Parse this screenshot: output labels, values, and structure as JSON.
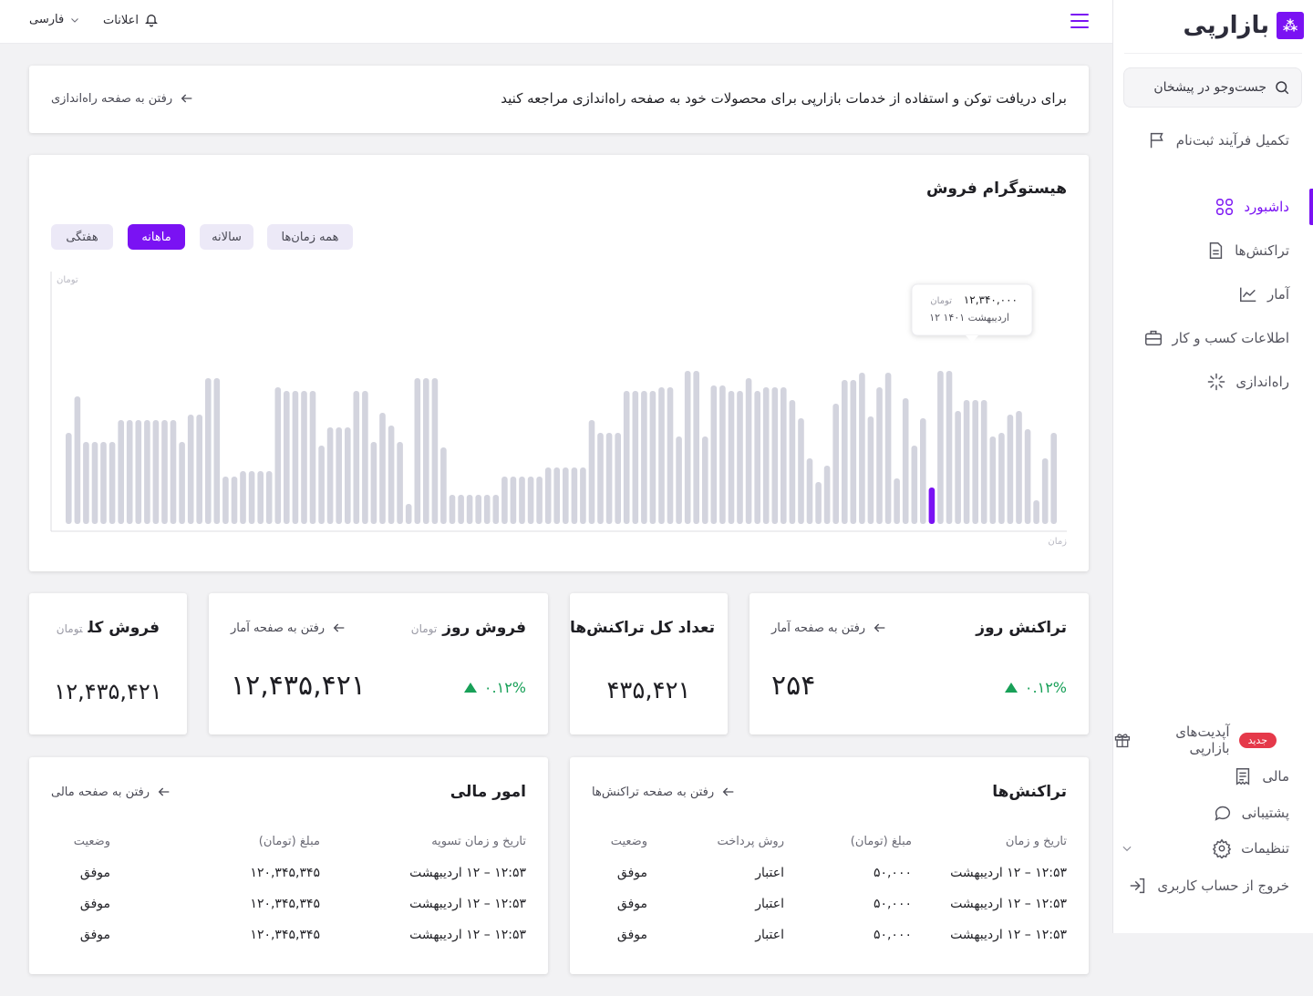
{
  "sidebar": {
    "logo_text": "بازارپی",
    "search_placeholder": "جست‌وجو در پیشخان",
    "complete_signup": "تکمیل فرآیند ثبت‌نام",
    "items": [
      {
        "label": "داشبورد",
        "icon": "dashboard-icon",
        "active": true
      },
      {
        "label": "تراکنش‌ها",
        "icon": "document-icon",
        "active": false
      },
      {
        "label": "آمار",
        "icon": "chart-icon",
        "active": false
      },
      {
        "label": "اطلاعات کسب و کار",
        "icon": "briefcase-icon",
        "active": false
      },
      {
        "label": "راه‌اندازی",
        "icon": "setup-icon",
        "active": false
      }
    ],
    "bottom": [
      {
        "label": "آپدیت‌های بازارپی",
        "icon": "gift-icon",
        "badge": "جدید"
      },
      {
        "label": "مالی",
        "icon": "receipt-icon"
      },
      {
        "label": "پشتیبانی",
        "icon": "chat-icon"
      },
      {
        "label": "تنظیمات",
        "icon": "gear-icon"
      },
      {
        "label": "خروج از حساب کاربری",
        "icon": "logout-icon"
      }
    ]
  },
  "topbar": {
    "notifications": "اعلانات",
    "language": "فارسی"
  },
  "banner": {
    "text": "برای دریافت توکن و استفاده از خدمات بازارپی برای محصولات خود به صفحه راه‌اندازی مراجعه کنید",
    "link": "رفتن به صفحه راه‌اندازی"
  },
  "histogram": {
    "title": "هیستوگرام فروش",
    "chips": [
      {
        "label": "همه زمان‌ها",
        "active": false
      },
      {
        "label": "سالانه",
        "active": false
      },
      {
        "label": "ماهانه",
        "active": true
      },
      {
        "label": "هفتگی",
        "active": false
      }
    ],
    "y_unit": "تومان",
    "x_unit": "زمان",
    "tooltip": {
      "amount": "۱۲,۳۴۰,۰۰۰",
      "unit": "تومان",
      "date": "۱۲ اردیبهشت ۱۴۰۱"
    }
  },
  "chart_data": {
    "type": "bar",
    "title": "هیستوگرام فروش",
    "xlabel": "زمان",
    "ylabel": "تومان",
    "ylim": [
      0,
      100
    ],
    "highlight_index": 99,
    "colors": {
      "bar": "#d3d4de",
      "highlight": "#7a12f3"
    },
    "values": [
      50,
      70,
      45,
      45,
      45,
      45,
      57,
      57,
      57,
      57,
      57,
      57,
      57,
      45,
      60,
      60,
      80,
      80,
      26,
      26,
      29,
      29,
      29,
      29,
      75,
      73,
      73,
      73,
      73,
      43,
      53,
      53,
      53,
      73,
      73,
      45,
      61,
      54,
      45,
      11,
      80,
      80,
      80,
      42,
      16,
      16,
      16,
      16,
      16,
      16,
      26,
      26,
      26,
      26,
      26,
      31,
      31,
      31,
      31,
      31,
      57,
      50,
      50,
      50,
      73,
      73,
      73,
      73,
      75,
      75,
      48,
      84,
      84,
      48,
      76,
      76,
      73,
      73,
      80,
      73,
      75,
      75,
      75,
      68,
      58,
      36,
      23,
      32,
      66,
      79,
      79,
      83,
      59,
      75,
      83,
      25,
      69,
      43,
      58,
      20,
      84,
      84,
      62,
      68,
      68,
      68,
      48,
      50,
      60,
      62,
      52,
      13,
      36,
      50
    ],
    "values_note": "relative heights",
    "grid": false
  },
  "stats": {
    "total_sales": {
      "title": "فروش کل",
      "unit": "تومان",
      "value": "۱۲,۴۳۵,۴۲۱"
    },
    "day_sales": {
      "title": "فروش روز",
      "unit": "تومان",
      "link": "رفتن به صفحه آمار",
      "value": "۱۲,۴۳۵,۴۲۱",
      "delta": "۰.۱۲%"
    },
    "total_tx": {
      "title": "تعداد کل تراکنش‌ها",
      "value": "۴۳۵,۴۲۱"
    },
    "day_tx": {
      "title": "تراکنش روز",
      "link": "رفتن به صفحه آمار",
      "value": "۲۵۴",
      "delta": "۰.۱۲%"
    }
  },
  "finance": {
    "title": "امور مالی",
    "link": "رفتن به صفحه مالی",
    "columns": [
      "تاریخ و زمان تسویه",
      "مبلغ (تومان)",
      "وضعیت"
    ],
    "rows": [
      [
        "۱۲:۵۳ – ۱۲ اردیبهشت",
        "۱۲۰,۳۴۵,۳۴۵",
        "موفق"
      ],
      [
        "۱۲:۵۳ – ۱۲ اردیبهشت",
        "۱۲۰,۳۴۵,۳۴۵",
        "موفق"
      ],
      [
        "۱۲:۵۳ – ۱۲ اردیبهشت",
        "۱۲۰,۳۴۵,۳۴۵",
        "موفق"
      ]
    ]
  },
  "transactions": {
    "title": "تراکنش‌ها",
    "link": "رفتن به صفحه تراکنش‌ها",
    "columns": [
      "تاریخ و زمان",
      "مبلغ (تومان)",
      "روش پرداخت",
      "وضعیت"
    ],
    "rows": [
      [
        "۱۲:۵۳ – ۱۲ اردیبهشت",
        "۵۰,۰۰۰",
        "اعتبار",
        "موفق"
      ],
      [
        "۱۲:۵۳ – ۱۲ اردیبهشت",
        "۵۰,۰۰۰",
        "اعتبار",
        "موفق"
      ],
      [
        "۱۲:۵۳ – ۱۲ اردیبهشت",
        "۵۰,۰۰۰",
        "اعتبار",
        "موفق"
      ]
    ]
  }
}
